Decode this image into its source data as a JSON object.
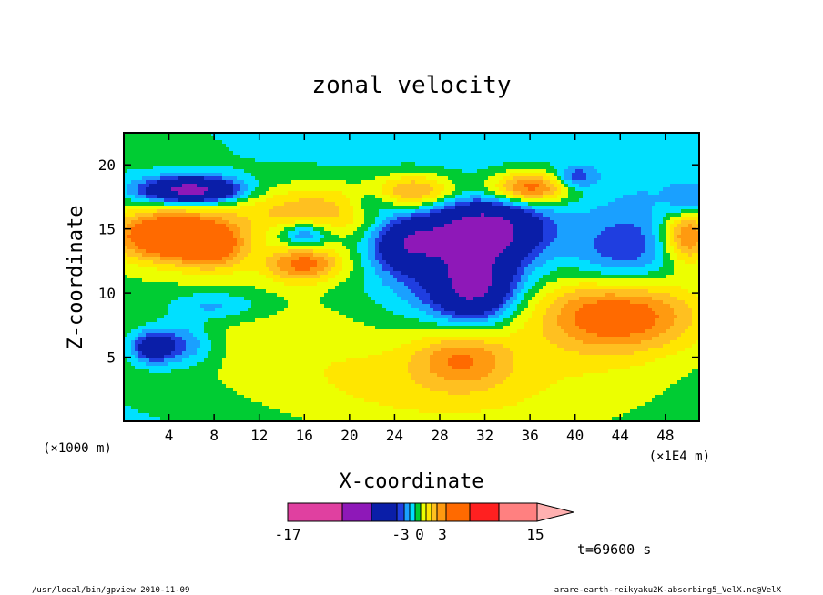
{
  "chart_data": {
    "type": "contour",
    "title": "zonal velocity",
    "xlabel": "X-coordinate",
    "ylabel": "Z-coordinate",
    "x_unit_left": "(×1000 m)",
    "x_unit_right": "(×1E4 m)",
    "x_ticks": [
      "4",
      "8",
      "12",
      "16",
      "20",
      "24",
      "28",
      "32",
      "36",
      "40",
      "44",
      "48"
    ],
    "y_ticks": [
      "5",
      "10",
      "15",
      "20"
    ],
    "xlim": [
      0,
      51
    ],
    "ylim": [
      0,
      22.5
    ],
    "colorbar": {
      "labels": [
        "-17",
        "-3",
        "0",
        "3",
        "15"
      ],
      "levels": [
        -17,
        -12,
        -8,
        -4,
        -3,
        -2,
        -1,
        0,
        1,
        2,
        3,
        4,
        8,
        12,
        15
      ],
      "colors": [
        "#e040a0",
        "#8e18b8",
        "#0a1ea8",
        "#1f3ee0",
        "#1aa0ff",
        "#00e0ff",
        "#00cc33",
        "#ecff00",
        "#ffe600",
        "#ffc020",
        "#ff9a10",
        "#ff6a00",
        "#ff2020",
        "#ff8080",
        "#ffb0b0"
      ]
    },
    "time_label": "t=69600 s",
    "regions": [
      {
        "x": 4,
        "y": 14.5,
        "value": 7
      },
      {
        "x": 6,
        "y": 18,
        "value": -7
      },
      {
        "x": 16,
        "y": 12.3,
        "value": 4
      },
      {
        "x": 30,
        "y": 14.5,
        "value": -5
      },
      {
        "x": 31,
        "y": 10.5,
        "value": -5
      },
      {
        "x": 36,
        "y": 18.2,
        "value": 5
      },
      {
        "x": 44,
        "y": 8.5,
        "value": 5
      },
      {
        "x": 44,
        "y": 12,
        "value": -2
      },
      {
        "x": 30,
        "y": 5,
        "value": 3
      }
    ]
  },
  "footer": {
    "left": "/usr/local/bin/gpview  2010-11-09",
    "right": "arare-earth-reikyaku2K-absorbing5_VelX.nc@VelX"
  },
  "colors": {
    "green": "#00cc33",
    "yellow": "#ecff00",
    "cyan": "#00e0ff"
  }
}
